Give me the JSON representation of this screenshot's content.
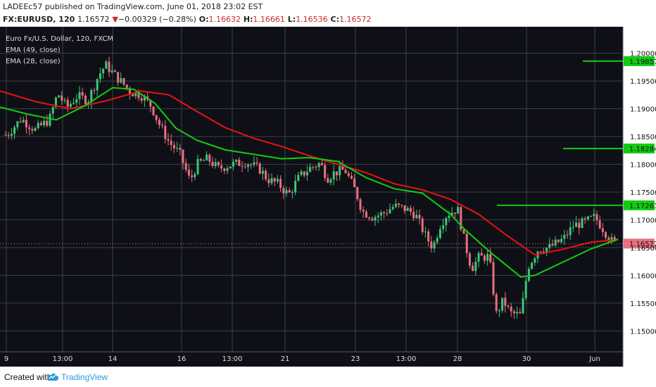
{
  "header": {
    "publisher": "LADEEc57",
    "published_text": " published on TradingView.com, June 01, 2018 23:02 EST",
    "symbol": "FX:EURUSD, 120",
    "last": "1.16572",
    "change_arrow": "▼",
    "change": "−0.00329 (−0.28%)",
    "o_label": "O:",
    "o_value": "1.16632",
    "h_label": "H:",
    "h_value": "1.16661",
    "l_label": "L:",
    "l_value": "1.16536",
    "c_label": "C:",
    "c_value": "1.16572"
  },
  "legend": {
    "title": "Euro Fx/U.S. Dollar, 120, FXCM",
    "ema49": "EMA (49, close)",
    "ema28": "EMA (28, close)"
  },
  "footer": {
    "created_with": "Created with",
    "brand": "TradingView"
  },
  "colors": {
    "background": "#0f1017",
    "grid": "#3c3f4a",
    "up": "#3cc776",
    "down": "#e8707f",
    "ema49": "#e81414",
    "ema28": "#12cc12",
    "level": "#12cc12",
    "last_price_line": "#e8707f"
  },
  "chart_data": {
    "type": "candlestick",
    "symbol": "FX:EURUSD",
    "interval": "120",
    "ylim": [
      1.1475,
      1.2035
    ],
    "y_ticks": [
      "1.20000",
      "1.19500",
      "1.19000",
      "1.18500",
      "1.18000",
      "1.17500",
      "1.17000",
      "1.16500",
      "1.16000",
      "1.15500",
      "1.15000"
    ],
    "x_ticks": [
      "9",
      "13:00",
      "14",
      "16",
      "13:00",
      "21",
      "23",
      "13:00",
      "28",
      "30",
      "Jun"
    ],
    "levels": [
      {
        "label": "1.19857",
        "value": 1.19857
      },
      {
        "label": "1.18284",
        "value": 1.18284
      },
      {
        "label": "1.17261",
        "value": 1.17261
      }
    ],
    "last_price": {
      "label": "1.16572",
      "value": 1.16572
    },
    "series": [
      {
        "name": "EMA (49, close)",
        "x": [
          0,
          50,
          100,
          150,
          200,
          240,
          280,
          320,
          360,
          400,
          440,
          480,
          520,
          560,
          600,
          640,
          680,
          720,
          760,
          800,
          840,
          878
        ],
        "values": [
          1.1932,
          1.1913,
          1.19,
          1.1914,
          1.1932,
          1.1925,
          1.1895,
          1.1866,
          1.1847,
          1.1832,
          1.1815,
          1.18,
          1.1785,
          1.1765,
          1.1754,
          1.1737,
          1.171,
          1.1672,
          1.1637,
          1.1647,
          1.166,
          1.1664
        ]
      },
      {
        "name": "EMA (28, close)",
        "x": [
          0,
          40,
          80,
          120,
          160,
          190,
          220,
          250,
          280,
          320,
          360,
          400,
          440,
          480,
          520,
          560,
          600,
          640,
          660,
          700,
          740,
          760,
          800,
          840,
          878
        ],
        "values": [
          1.1903,
          1.189,
          1.188,
          1.1905,
          1.1938,
          1.1935,
          1.191,
          1.1865,
          1.1843,
          1.1826,
          1.1818,
          1.181,
          1.1812,
          1.1805,
          1.1776,
          1.1756,
          1.1748,
          1.171,
          1.1683,
          1.1638,
          1.1597,
          1.16,
          1.1624,
          1.1648,
          1.1665
        ]
      }
    ],
    "price_path": {
      "x": [
        10,
        30,
        50,
        70,
        82,
        95,
        110,
        125,
        140,
        150,
        165,
        175,
        185,
        200,
        215,
        225,
        240,
        255,
        270,
        280,
        295,
        310,
        330,
        350,
        370,
        380,
        395,
        410,
        425,
        440,
        455,
        465,
        475,
        490,
        505,
        515,
        530,
        545,
        560,
        575,
        590,
        605,
        615,
        625,
        635,
        650,
        660,
        670,
        680,
        695,
        705,
        715,
        725,
        740,
        750,
        765,
        780,
        800,
        815,
        830,
        845,
        856,
        870,
        878
      ],
      "values": [
        1.1853,
        1.1882,
        1.1862,
        1.188,
        1.1928,
        1.1902,
        1.1923,
        1.1915,
        1.196,
        1.1979,
        1.1958,
        1.1945,
        1.193,
        1.1925,
        1.1905,
        1.1875,
        1.184,
        1.182,
        1.177,
        1.18,
        1.181,
        1.1792,
        1.18,
        1.1804,
        1.179,
        1.1773,
        1.1765,
        1.1745,
        1.1777,
        1.1793,
        1.1802,
        1.1775,
        1.1785,
        1.179,
        1.1752,
        1.1715,
        1.1705,
        1.1712,
        1.1725,
        1.172,
        1.171,
        1.167,
        1.165,
        1.169,
        1.171,
        1.172,
        1.166,
        1.1612,
        1.1632,
        1.1634,
        1.153,
        1.1555,
        1.1532,
        1.1528,
        1.1615,
        1.1648,
        1.165,
        1.1665,
        1.169,
        1.1695,
        1.1705,
        1.1685,
        1.166,
        1.1657
      ]
    },
    "grid": true
  }
}
